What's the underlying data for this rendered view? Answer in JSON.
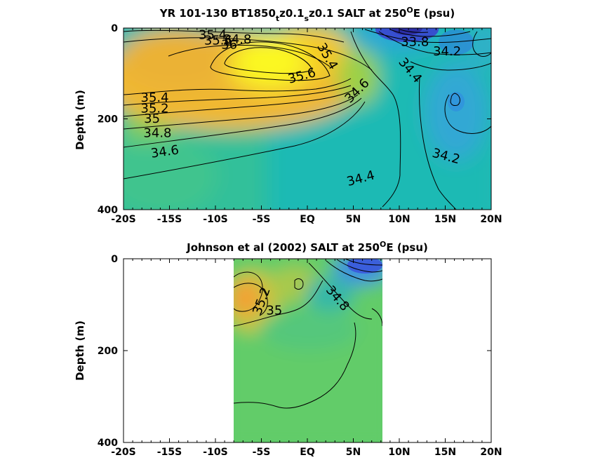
{
  "chart_data": [
    {
      "type": "contour",
      "title_main": "YR 101-130 BT1850",
      "title_sub1": "t",
      "title_mid": "z0.1",
      "title_sub2": "s",
      "title_end": "z0.1 SALT at 250",
      "title_sup": "O",
      "title_tail": "E (psu)",
      "ylabel": "Depth (m)",
      "x_ticks": [
        "-20S",
        "-15S",
        "-10S",
        "-5S",
        "EQ",
        "5N",
        "10N",
        "15N",
        "20N"
      ],
      "x_range": [
        -20,
        20
      ],
      "y_ticks": [
        "0",
        "200",
        "400"
      ],
      "y_range": [
        0,
        400
      ],
      "contour_labels": [
        {
          "text": "35.4",
          "x": -10.3,
          "y": 15,
          "rot": 0
        },
        {
          "text": "35.6",
          "x": -9.7,
          "y": 27,
          "rot": 0
        },
        {
          "text": "34.8",
          "x": -7.6,
          "y": 25,
          "rot": 0
        },
        {
          "text": "36",
          "x": -8.5,
          "y": 36,
          "rot": 0
        },
        {
          "text": "35.6",
          "x": -0.6,
          "y": 105,
          "rot": -15
        },
        {
          "text": "35.4",
          "x": -16.6,
          "y": 153,
          "rot": 0
        },
        {
          "text": "35.2",
          "x": -16.6,
          "y": 177,
          "rot": 0
        },
        {
          "text": "35",
          "x": -16.9,
          "y": 199,
          "rot": 0
        },
        {
          "text": "34.8",
          "x": -16.3,
          "y": 231,
          "rot": 0
        },
        {
          "text": "34.6",
          "x": -15.5,
          "y": 272,
          "rot": -8
        },
        {
          "text": "35.4",
          "x": 2.2,
          "y": 62,
          "rot": 60
        },
        {
          "text": "34.6",
          "x": 5.4,
          "y": 138,
          "rot": -45
        },
        {
          "text": "33.8",
          "x": 11.7,
          "y": 30,
          "rot": 0
        },
        {
          "text": "34.2",
          "x": 15.2,
          "y": 51,
          "rot": 0
        },
        {
          "text": "34.4",
          "x": 11.2,
          "y": 93,
          "rot": 50
        },
        {
          "text": "34.2",
          "x": 15.1,
          "y": 282,
          "rot": 15
        },
        {
          "text": "34.4",
          "x": 5.8,
          "y": 331,
          "rot": -15
        }
      ]
    },
    {
      "type": "contour",
      "title_main": "Johnson et al (2002) SALT at 250",
      "title_sup": "O",
      "title_tail": "E (psu)",
      "ylabel": "Depth (m)",
      "x_ticks": [
        "-20S",
        "-15S",
        "-10S",
        "-5S",
        "EQ",
        "5N",
        "10N",
        "15N",
        "20N"
      ],
      "x_range": [
        -20,
        20
      ],
      "y_ticks": [
        "0",
        "200",
        "400"
      ],
      "y_range": [
        0,
        400
      ],
      "data_x_extent": [
        -8,
        8.2
      ],
      "contour_labels": [
        {
          "text": "35.2",
          "x": -5.0,
          "y": 92,
          "rot": -70
        },
        {
          "text": "35",
          "x": -3.6,
          "y": 112,
          "rot": 0
        },
        {
          "text": "34.8",
          "x": 3.3,
          "y": 86,
          "rot": 50
        }
      ]
    }
  ]
}
